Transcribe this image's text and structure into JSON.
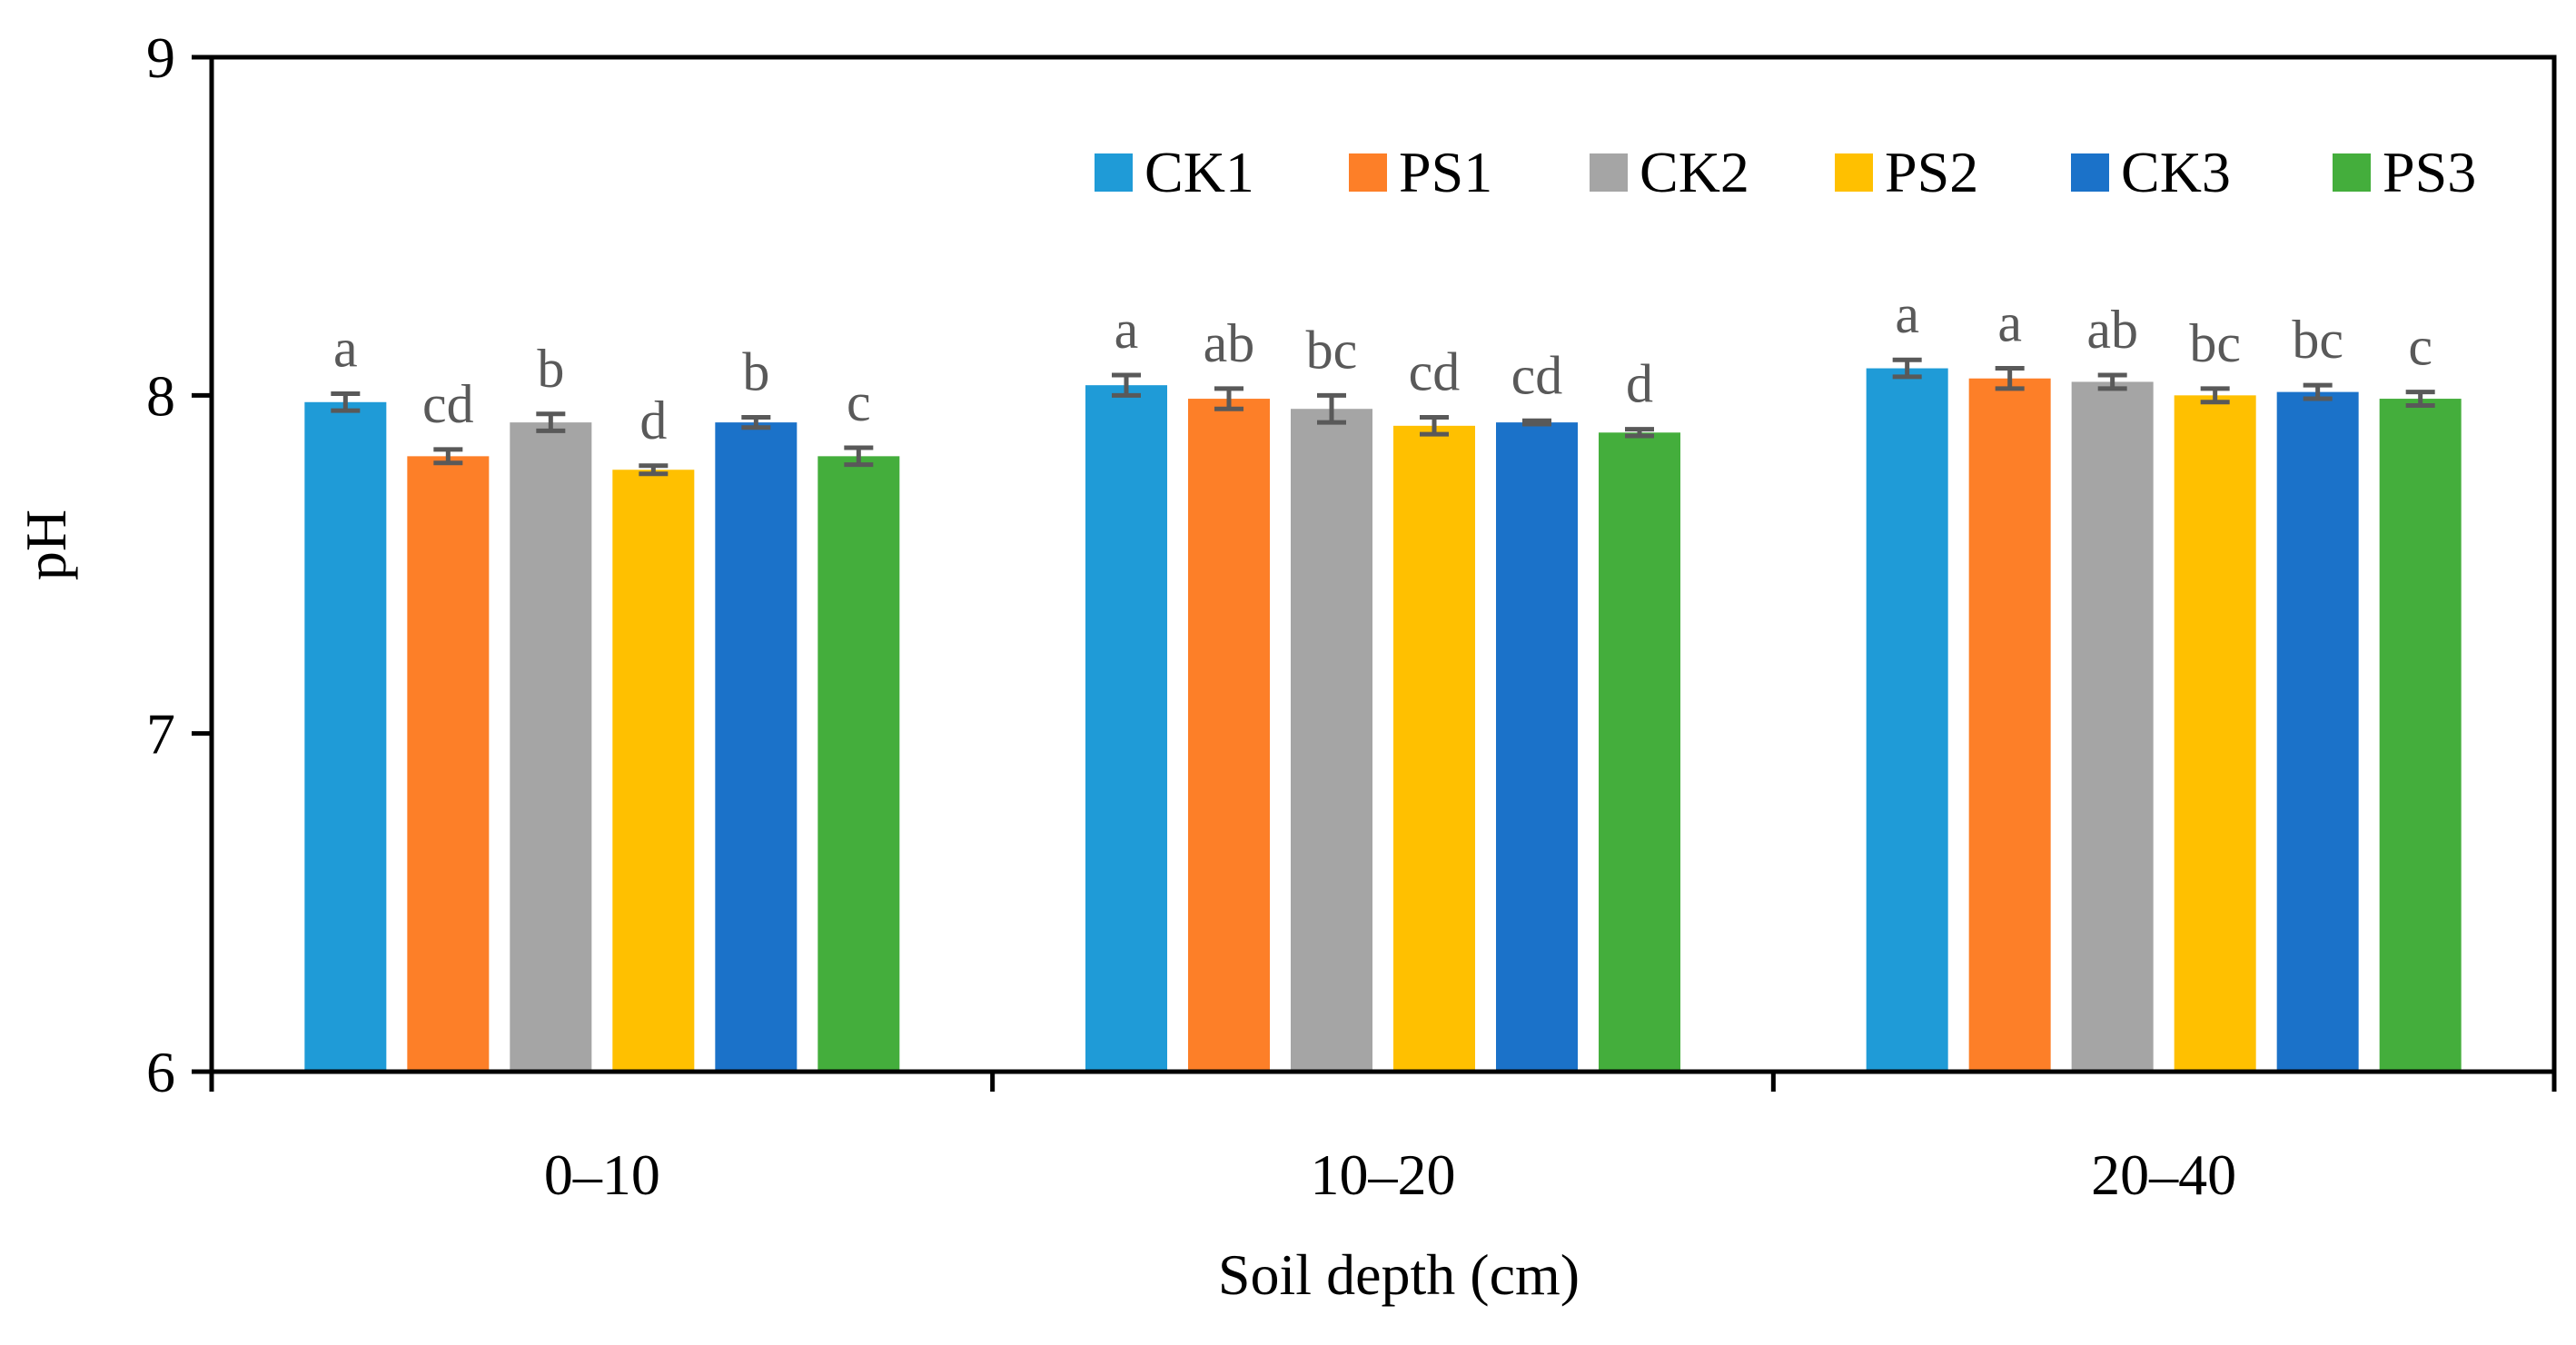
{
  "chart_data": {
    "type": "bar",
    "title": "",
    "xlabel": "Soil depth (cm)",
    "ylabel": "pH",
    "ylim": [
      6,
      9
    ],
    "yticks": [
      "6",
      "7",
      "8",
      "9"
    ],
    "grid": false,
    "legend_position": "top-right",
    "categories": [
      "0–10",
      "10–20",
      "20–40"
    ],
    "series": [
      {
        "name": "CK1",
        "color": "#1f9bd7",
        "values": [
          7.98,
          8.03,
          8.08
        ],
        "errors": [
          0.025,
          0.03,
          0.025
        ],
        "letters": [
          "a",
          "a",
          "a"
        ]
      },
      {
        "name": "PS1",
        "color": "#fd7f28",
        "values": [
          7.82,
          7.99,
          8.05
        ],
        "errors": [
          0.02,
          0.03,
          0.03
        ],
        "letters": [
          "cd",
          "ab",
          "a"
        ]
      },
      {
        "name": "CK2",
        "color": "#a5a5a5",
        "values": [
          7.92,
          7.96,
          8.04
        ],
        "errors": [
          0.025,
          0.04,
          0.02
        ],
        "letters": [
          "b",
          "bc",
          "ab"
        ]
      },
      {
        "name": "PS2",
        "color": "#ffc000",
        "values": [
          7.78,
          7.91,
          8.0
        ],
        "errors": [
          0.012,
          0.025,
          0.02
        ],
        "letters": [
          "d",
          "cd",
          "bc"
        ]
      },
      {
        "name": "CK3",
        "color": "#1b72c9",
        "values": [
          7.92,
          7.92,
          8.01
        ],
        "errors": [
          0.015,
          0.005,
          0.02
        ],
        "letters": [
          "b",
          "cd",
          "bc"
        ]
      },
      {
        "name": "PS3",
        "color": "#44ae3c",
        "values": [
          7.82,
          7.89,
          7.99
        ],
        "errors": [
          0.025,
          0.01,
          0.02
        ],
        "letters": [
          "c",
          "d",
          "c"
        ]
      }
    ]
  }
}
